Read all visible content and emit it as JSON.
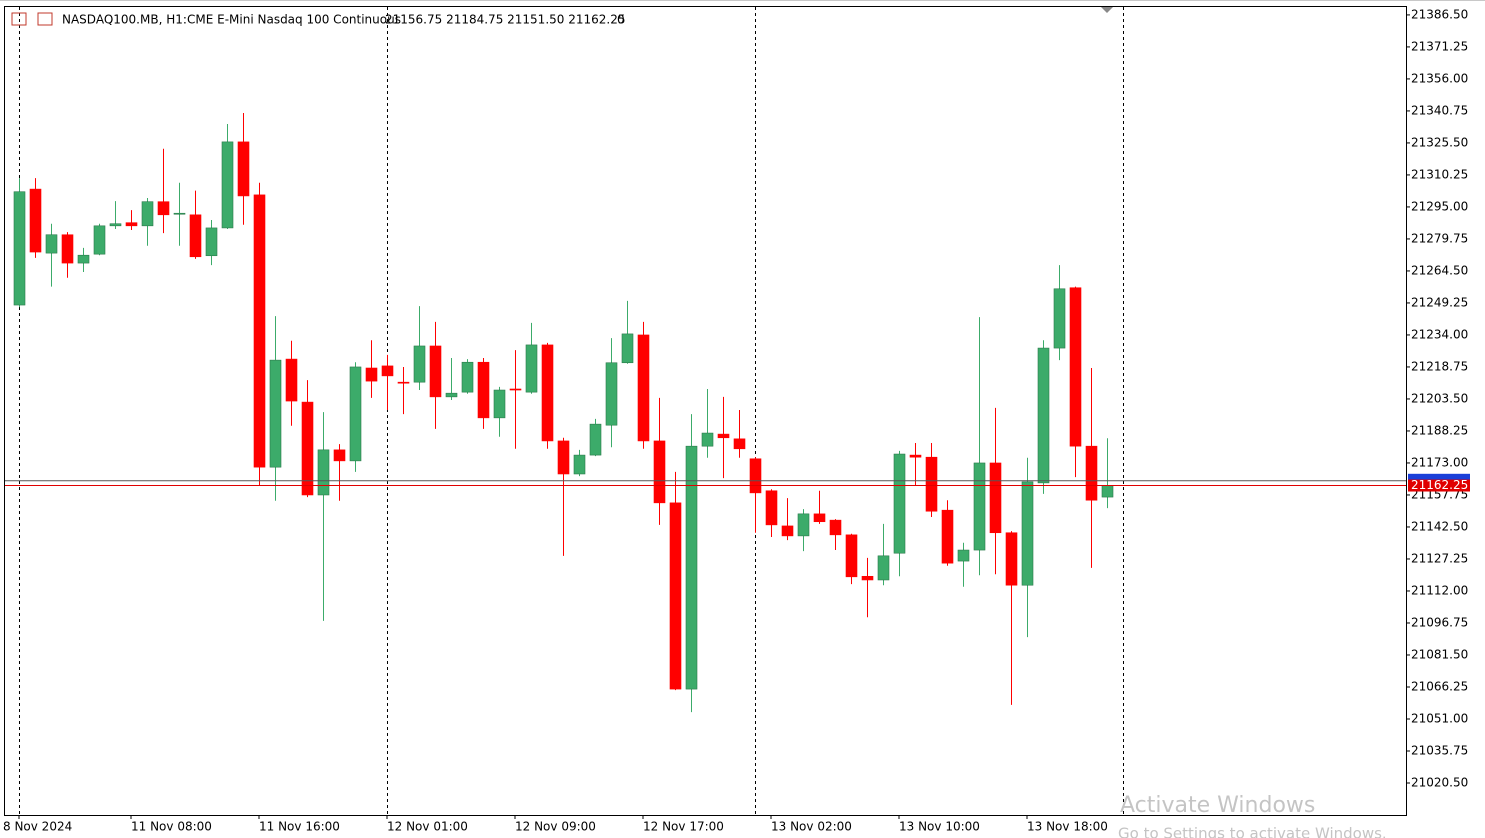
{
  "header": {
    "symbol": "NASDAQ100.MB, H1:",
    "description": "CME E-Mini Nasdaq 100 Continuous",
    "ohlc": "21156.75 21184.75 21151.50 21162.25",
    "volume": 0
  },
  "watermark": {
    "line1": "Activate Windows",
    "line2": "Go to Settings to activate Windows."
  },
  "chart_data": {
    "type": "candlestick",
    "categories": [
      "8 Nov 2024",
      null,
      null,
      null,
      null,
      null,
      null,
      "11 Nov 08:00",
      null,
      null,
      null,
      null,
      null,
      null,
      null,
      "11 Nov 16:00",
      null,
      null,
      null,
      null,
      null,
      null,
      null,
      "12 Nov 01:00",
      null,
      null,
      null,
      null,
      null,
      null,
      null,
      "12 Nov 09:00",
      null,
      null,
      null,
      null,
      null,
      null,
      null,
      "12 Nov 17:00",
      null,
      null,
      null,
      null,
      null,
      null,
      null,
      "13 Nov 02:00",
      null,
      null,
      null,
      null,
      null,
      null,
      null,
      "13 Nov 10:00",
      null,
      null,
      null,
      null,
      null,
      null,
      null,
      "13 Nov 18:00",
      null,
      null,
      null,
      null,
      null
    ],
    "open": [
      21248.25,
      21303.5,
      21273,
      21281.75,
      21268.25,
      21272.5,
      21286,
      21287.5,
      21286,
      21297.5,
      21291.75,
      21291.25,
      21271.75,
      21285,
      21326,
      21300.75,
      21171,
      21222.5,
      21202,
      21157.75,
      21179.25,
      21174,
      21218.25,
      21219.25,
      21211.5,
      21211.5,
      21228.75,
      21204.5,
      21206.75,
      21221,
      21194.5,
      21208.25,
      21206.75,
      21229.25,
      21183.5,
      21167.75,
      21176.75,
      21191,
      21220.75,
      21234,
      21183.5,
      21154,
      21065.25,
      21181,
      21186.75,
      21184.5,
      21175,
      21159.75,
      21143,
      21138.25,
      21148.75,
      21145.75,
      21138.75,
      21119,
      21117.25,
      21130,
      21176.75,
      21175.75,
      21150.5,
      21126.25,
      21131.5,
      21173,
      21139.75,
      21114.75,
      21163.5,
      21227.75,
      21256.5,
      21181,
      21156.75
    ],
    "high": [
      21308.75,
      21308.75,
      21287,
      21283,
      21275.5,
      21287,
      21297.75,
      21293.5,
      21299.25,
      21322.75,
      21306.5,
      21302.75,
      21288.75,
      21334.5,
      21339.75,
      21306.5,
      21243,
      21231.25,
      21212.5,
      21197.25,
      21182,
      21221,
      21231.5,
      21224.5,
      21218.75,
      21247.75,
      21240.25,
      21223,
      21222.5,
      21223,
      21209.25,
      21226.75,
      21239.75,
      21230.25,
      21185,
      21179.25,
      21194,
      21232.5,
      21250.25,
      21240.25,
      21204,
      21168.75,
      21196.25,
      21208.25,
      21204.5,
      21198.25,
      21175.75,
      21160.5,
      21156.25,
      21151,
      21159.75,
      21146.25,
      21139.25,
      21127.75,
      21144,
      21178.75,
      21182.5,
      21182.5,
      21155.25,
      21135,
      21242.5,
      21199.25,
      21140.5,
      21175.5,
      21231.5,
      21267.25,
      21257,
      21218.25,
      21184.75
    ],
    "low": [
      21247.25,
      21270.75,
      21257,
      21261.25,
      21264,
      21272,
      21284.5,
      21284,
      21276.5,
      21282.5,
      21276.5,
      21270.25,
      21267.25,
      21284.5,
      21286.5,
      21162.5,
      21155,
      21190.75,
      21156.75,
      21097.75,
      21155,
      21168.75,
      21204,
      21198.25,
      21196.25,
      21207.75,
      21189.25,
      21203,
      21206,
      21189.25,
      21185.5,
      21179.75,
      21206,
      21179.75,
      21128.75,
      21166.75,
      21176.25,
      21180.5,
      21220.25,
      21179.75,
      21143.5,
      21064.75,
      21054.25,
      21175.5,
      21165.75,
      21175.5,
      21139.75,
      21137.75,
      21136.25,
      21131,
      21144,
      21131.5,
      21115.25,
      21099.5,
      21114.75,
      21119,
      21162.5,
      21147.25,
      21124,
      21114,
      21119.5,
      21120,
      21057.75,
      21090,
      21158.25,
      21222,
      21166.25,
      21123,
      21151.5
    ],
    "close": [
      21302.25,
      21273.5,
      21281.75,
      21268.25,
      21272,
      21286,
      21287,
      21286,
      21297.5,
      21291.25,
      21292,
      21271.25,
      21285,
      21326,
      21300.25,
      21171,
      21222,
      21202.5,
      21157.75,
      21179.25,
      21174,
      21218.75,
      21212,
      21214.5,
      21211,
      21228.75,
      21204.5,
      21206.25,
      21221,
      21194.5,
      21207.75,
      21207.75,
      21229.25,
      21183.5,
      21167.75,
      21176.75,
      21191.5,
      21220.75,
      21234.5,
      21183.5,
      21154,
      21065.25,
      21181,
      21187.25,
      21185,
      21179.75,
      21158.75,
      21143.5,
      21138.25,
      21148.75,
      21145,
      21138.75,
      21118.75,
      21117.25,
      21128.75,
      21177.25,
      21175.75,
      21150,
      21125.25,
      21131.5,
      21173,
      21139.75,
      21114.75,
      21164,
      21227.75,
      21256,
      21181,
      21155.25,
      21162.25
    ],
    "up_color": "#3cab6a",
    "down_color": "#ff0000",
    "bid": 21162.25,
    "ask": 21164.5,
    "ylim": [
      21005.25,
      21390.75
    ],
    "yticks": [
      {
        "value": 21386.5,
        "label": "21386.50"
      },
      {
        "value": 21371.25,
        "label": "21371.25"
      },
      {
        "value": 21356,
        "label": "21356.00"
      },
      {
        "value": 21340.75,
        "label": "21340.75"
      },
      {
        "value": 21325.5,
        "label": "21325.50"
      },
      {
        "value": 21310.25,
        "label": "21310.25"
      },
      {
        "value": 21295,
        "label": "21295.00"
      },
      {
        "value": 21279.75,
        "label": "21279.75"
      },
      {
        "value": 21264.5,
        "label": "21264.50"
      },
      {
        "value": 21249.25,
        "label": "21249.25"
      },
      {
        "value": 21234,
        "label": "21234.00"
      },
      {
        "value": 21218.75,
        "label": "21218.75"
      },
      {
        "value": 21203.5,
        "label": "21203.50"
      },
      {
        "value": 21188.25,
        "label": "21188.25"
      },
      {
        "value": 21173,
        "label": "21173.00"
      },
      {
        "value": 21157.75,
        "label": "21157.75"
      },
      {
        "value": 21142.5,
        "label": "21142.50"
      },
      {
        "value": 21127.25,
        "label": "21127.25"
      },
      {
        "value": 21112,
        "label": "21112.00"
      },
      {
        "value": 21096.75,
        "label": "21096.75"
      },
      {
        "value": 21081.5,
        "label": "21081.50"
      },
      {
        "value": 21066.25,
        "label": "21066.25"
      },
      {
        "value": 21051,
        "label": "21051.00"
      },
      {
        "value": 21035.75,
        "label": "21035.75"
      },
      {
        "value": 21020.5,
        "label": "21020.50"
      }
    ]
  }
}
